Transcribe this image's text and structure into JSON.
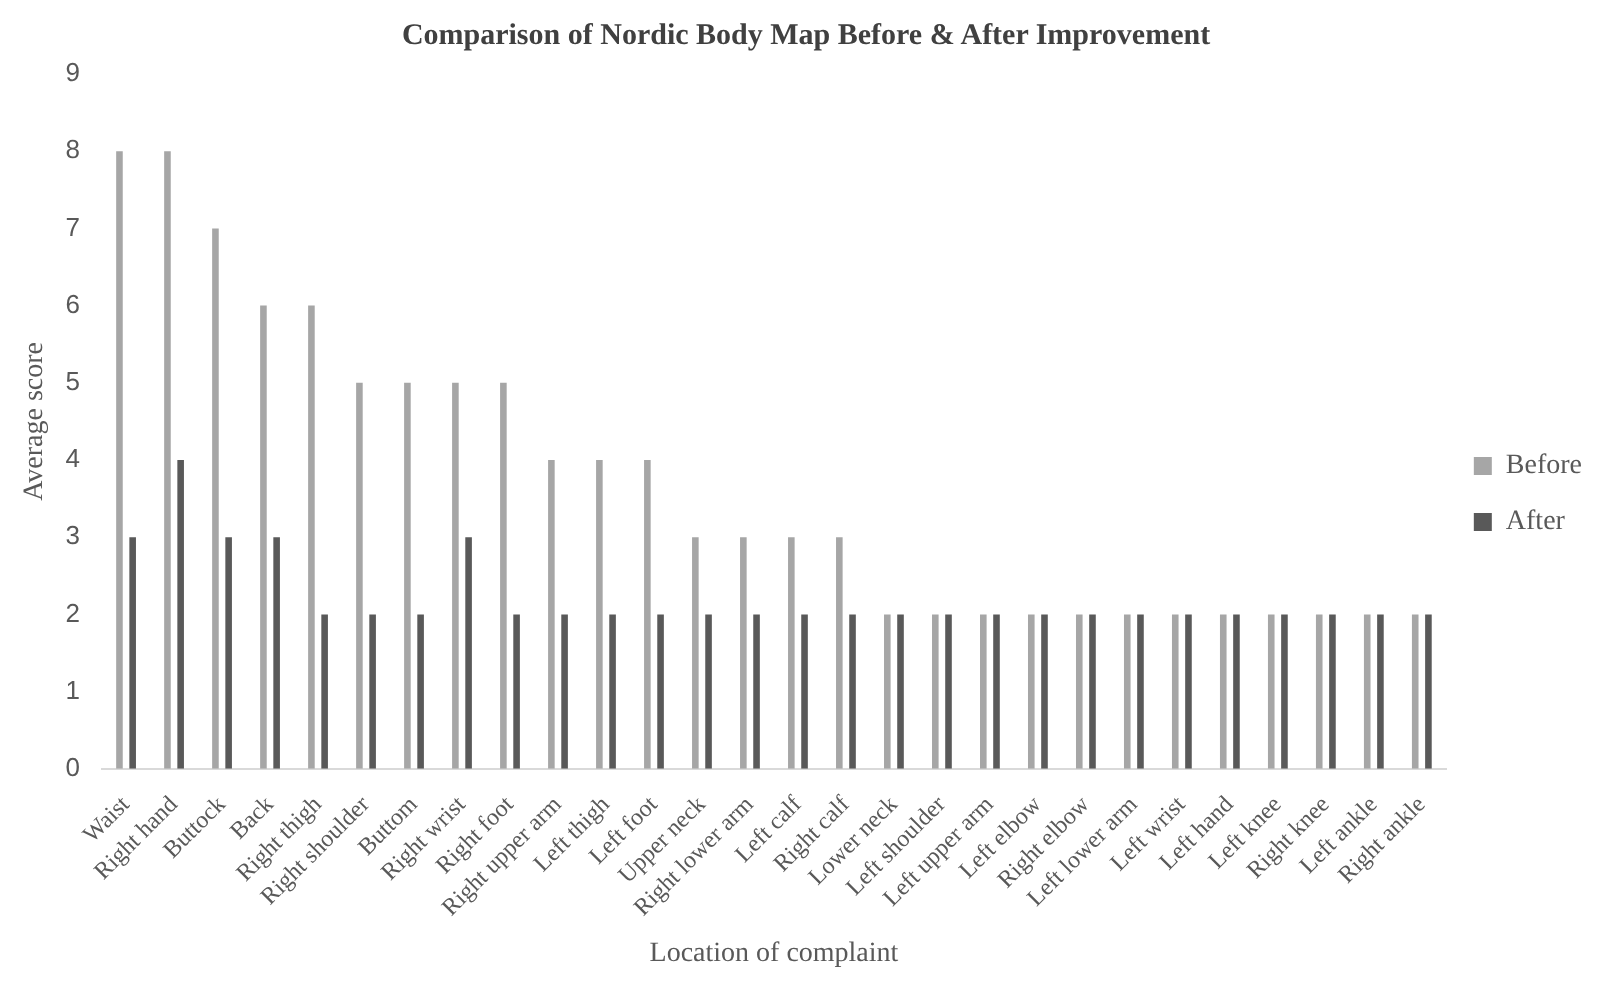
{
  "chart_data": {
    "type": "bar",
    "title": "Comparison of Nordic Body Map Before & After Improvement",
    "xlabel": "Location of complaint",
    "ylabel": "Average score",
    "categories": [
      "Waist",
      "Right hand",
      "Buttock",
      "Back",
      "Right thigh",
      "Right shoulder",
      "Buttom",
      "Right wrist",
      "Right foot",
      "Right upper arm",
      "Left thigh",
      "Left foot",
      "Upper neck",
      "Right lower arm",
      "Left calf",
      "Right calf",
      "Lower neck",
      "Left shoulder",
      "Left upper arm",
      "Left elbow",
      "Right elbow",
      "Left lower arm",
      "Left wrist",
      "Left hand",
      "Left knee",
      "Right knee",
      "Left ankle",
      "Right ankle"
    ],
    "series": [
      {
        "name": "Before",
        "color": "#a6a6a6",
        "values": [
          8,
          8,
          7,
          6,
          6,
          5,
          5,
          5,
          5,
          4,
          4,
          4,
          3,
          3,
          3,
          3,
          2,
          2,
          2,
          2,
          2,
          2,
          2,
          2,
          2,
          2,
          2,
          2
        ]
      },
      {
        "name": "After",
        "color": "#595959",
        "values": [
          3,
          4,
          3,
          3,
          2,
          2,
          2,
          3,
          2,
          2,
          2,
          2,
          2,
          2,
          2,
          2,
          2,
          2,
          2,
          2,
          2,
          2,
          2,
          2,
          2,
          2,
          2,
          2
        ]
      }
    ],
    "ylim": [
      0,
      9
    ],
    "yticks": [
      0,
      1,
      2,
      3,
      4,
      5,
      6,
      7,
      8,
      9
    ],
    "grid": false,
    "legend": "right"
  }
}
